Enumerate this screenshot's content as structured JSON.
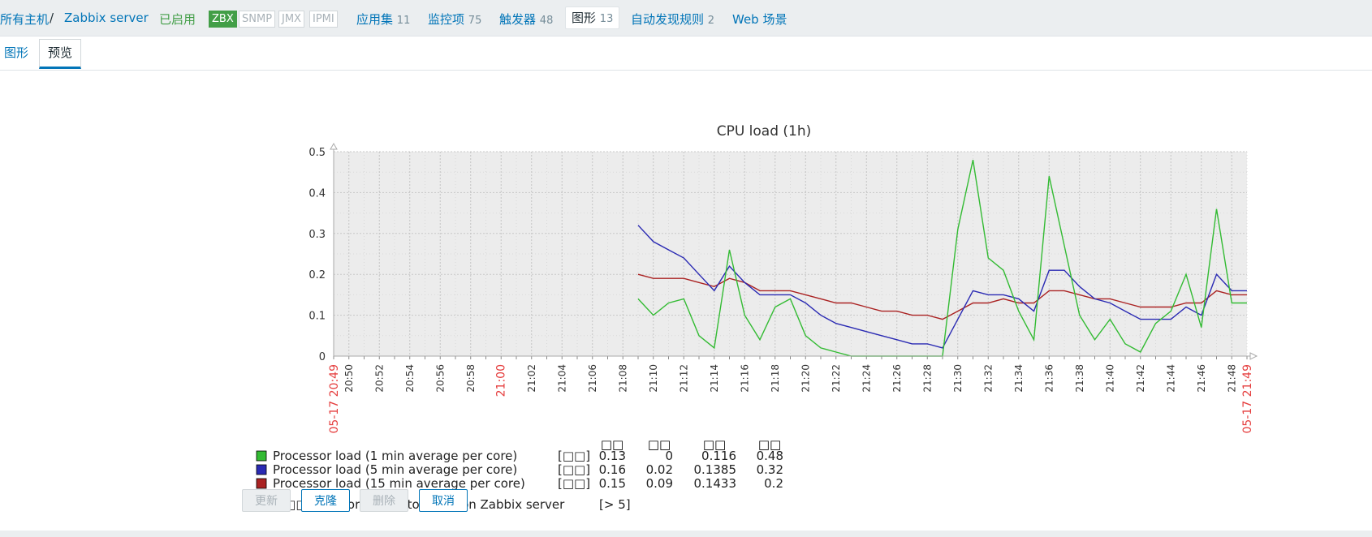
{
  "breadcrumb": {
    "all_hosts": "所有主机",
    "separator": "/",
    "host": "Zabbix server"
  },
  "status": "已启用",
  "badges": [
    "ZBX",
    "SNMP",
    "JMX",
    "IPMI"
  ],
  "nav": [
    {
      "label": "应用集",
      "count": "11"
    },
    {
      "label": "监控项",
      "count": "75"
    },
    {
      "label": "触发器",
      "count": "48"
    },
    {
      "label": "图形",
      "count": "13"
    },
    {
      "label": "自动发现规则",
      "count": "2"
    },
    {
      "label": "Web 场景",
      "count": ""
    }
  ],
  "subtabs": {
    "graph": "图形",
    "preview": "预览"
  },
  "colors": {
    "series1": "#33bb33",
    "series2": "#2a2ab3",
    "series3": "#aa2222",
    "trigger": "#ffd88a"
  },
  "chart_data": {
    "type": "line",
    "title": "CPU load (1h)",
    "ylim": [
      0,
      0.5
    ],
    "yticks": [
      "0",
      "0.1",
      "0.2",
      "0.3",
      "0.4",
      "0.5"
    ],
    "x_start": "05-17 20:49",
    "x_end": "05-17 21:49",
    "x_ticks": [
      "20:50",
      "20:52",
      "20:54",
      "20:56",
      "20:58",
      "21:00",
      "21:02",
      "21:04",
      "21:06",
      "21:08",
      "21:10",
      "21:12",
      "21:14",
      "21:16",
      "21:18",
      "21:20",
      "21:22",
      "21:24",
      "21:26",
      "21:28",
      "21:30",
      "21:32",
      "21:34",
      "21:36",
      "21:38",
      "21:40",
      "21:42",
      "21:44",
      "21:46",
      "21:48"
    ],
    "grid": true,
    "series": [
      {
        "name": "Processor load (1 min average per core)",
        "color": "#33bb33",
        "points": [
          [
            "21:09",
            0.14
          ],
          [
            "21:10",
            0.1
          ],
          [
            "21:11",
            0.13
          ],
          [
            "21:12",
            0.14
          ],
          [
            "21:13",
            0.05
          ],
          [
            "21:14",
            0.02
          ],
          [
            "21:15",
            0.26
          ],
          [
            "21:16",
            0.1
          ],
          [
            "21:17",
            0.04
          ],
          [
            "21:18",
            0.12
          ],
          [
            "21:19",
            0.14
          ],
          [
            "21:20",
            0.05
          ],
          [
            "21:21",
            0.02
          ],
          [
            "21:22",
            0.01
          ],
          [
            "21:23",
            0.0
          ],
          [
            "21:29",
            0.0
          ],
          [
            "21:30",
            0.31
          ],
          [
            "21:31",
            0.48
          ],
          [
            "21:32",
            0.24
          ],
          [
            "21:33",
            0.21
          ],
          [
            "21:34",
            0.11
          ],
          [
            "21:35",
            0.04
          ],
          [
            "21:36",
            0.44
          ],
          [
            "21:37",
            0.27
          ],
          [
            "21:38",
            0.1
          ],
          [
            "21:39",
            0.04
          ],
          [
            "21:40",
            0.09
          ],
          [
            "21:41",
            0.03
          ],
          [
            "21:42",
            0.01
          ],
          [
            "21:43",
            0.08
          ],
          [
            "21:44",
            0.11
          ],
          [
            "21:45",
            0.2
          ],
          [
            "21:46",
            0.07
          ],
          [
            "21:47",
            0.36
          ],
          [
            "21:48",
            0.13
          ],
          [
            "21:49",
            0.13
          ]
        ]
      },
      {
        "name": "Processor load (5 min average per core)",
        "color": "#2a2ab3",
        "points": [
          [
            "21:09",
            0.32
          ],
          [
            "21:10",
            0.28
          ],
          [
            "21:11",
            0.26
          ],
          [
            "21:12",
            0.24
          ],
          [
            "21:13",
            0.2
          ],
          [
            "21:14",
            0.16
          ],
          [
            "21:15",
            0.22
          ],
          [
            "21:16",
            0.18
          ],
          [
            "21:17",
            0.15
          ],
          [
            "21:18",
            0.15
          ],
          [
            "21:19",
            0.15
          ],
          [
            "21:20",
            0.13
          ],
          [
            "21:21",
            0.1
          ],
          [
            "21:22",
            0.08
          ],
          [
            "21:23",
            0.07
          ],
          [
            "21:24",
            0.06
          ],
          [
            "21:25",
            0.05
          ],
          [
            "21:26",
            0.04
          ],
          [
            "21:27",
            0.03
          ],
          [
            "21:28",
            0.03
          ],
          [
            "21:29",
            0.02
          ],
          [
            "21:30",
            0.09
          ],
          [
            "21:31",
            0.16
          ],
          [
            "21:32",
            0.15
          ],
          [
            "21:33",
            0.15
          ],
          [
            "21:34",
            0.14
          ],
          [
            "21:35",
            0.11
          ],
          [
            "21:36",
            0.21
          ],
          [
            "21:37",
            0.21
          ],
          [
            "21:38",
            0.17
          ],
          [
            "21:39",
            0.14
          ],
          [
            "21:40",
            0.13
          ],
          [
            "21:41",
            0.11
          ],
          [
            "21:42",
            0.09
          ],
          [
            "21:43",
            0.09
          ],
          [
            "21:44",
            0.09
          ],
          [
            "21:45",
            0.12
          ],
          [
            "21:46",
            0.1
          ],
          [
            "21:47",
            0.2
          ],
          [
            "21:48",
            0.16
          ],
          [
            "21:49",
            0.16
          ]
        ]
      },
      {
        "name": "Processor load (15 min average per core)",
        "color": "#aa2222",
        "points": [
          [
            "21:09",
            0.2
          ],
          [
            "21:10",
            0.19
          ],
          [
            "21:11",
            0.19
          ],
          [
            "21:12",
            0.19
          ],
          [
            "21:13",
            0.18
          ],
          [
            "21:14",
            0.17
          ],
          [
            "21:15",
            0.19
          ],
          [
            "21:16",
            0.18
          ],
          [
            "21:17",
            0.16
          ],
          [
            "21:18",
            0.16
          ],
          [
            "21:19",
            0.16
          ],
          [
            "21:20",
            0.15
          ],
          [
            "21:21",
            0.14
          ],
          [
            "21:22",
            0.13
          ],
          [
            "21:23",
            0.13
          ],
          [
            "21:24",
            0.12
          ],
          [
            "21:25",
            0.11
          ],
          [
            "21:26",
            0.11
          ],
          [
            "21:27",
            0.1
          ],
          [
            "21:28",
            0.1
          ],
          [
            "21:29",
            0.09
          ],
          [
            "21:30",
            0.11
          ],
          [
            "21:31",
            0.13
          ],
          [
            "21:32",
            0.13
          ],
          [
            "21:33",
            0.14
          ],
          [
            "21:34",
            0.13
          ],
          [
            "21:35",
            0.13
          ],
          [
            "21:36",
            0.16
          ],
          [
            "21:37",
            0.16
          ],
          [
            "21:38",
            0.15
          ],
          [
            "21:39",
            0.14
          ],
          [
            "21:40",
            0.14
          ],
          [
            "21:41",
            0.13
          ],
          [
            "21:42",
            0.12
          ],
          [
            "21:43",
            0.12
          ],
          [
            "21:44",
            0.12
          ],
          [
            "21:45",
            0.13
          ],
          [
            "21:46",
            0.13
          ],
          [
            "21:47",
            0.16
          ],
          [
            "21:48",
            0.15
          ],
          [
            "21:49",
            0.15
          ]
        ]
      }
    ],
    "legend": {
      "headers": [
        "□□",
        "□□",
        "□□",
        "□□"
      ],
      "rows": [
        {
          "name": "Processor load (1 min average per core)",
          "func": "[□□]",
          "last": "0.13",
          "min": "0",
          "avg": "0.116",
          "max": "0.48"
        },
        {
          "name": "Processor load (5 min average per core)",
          "func": "[□□]",
          "last": "0.16",
          "min": "0.02",
          "avg": "0.1385",
          "max": "0.32"
        },
        {
          "name": "Processor load (15 min average per core)",
          "func": "[□□]",
          "last": "0.15",
          "min": "0.09",
          "avg": "0.1433",
          "max": "0.2"
        }
      ],
      "trigger": {
        "prefix": "□□□:",
        "text": "Processor load is too high on Zabbix server",
        "threshold": "[> 5]"
      }
    }
  },
  "buttons": {
    "update": "更新",
    "clone": "克隆",
    "delete": "删除",
    "cancel": "取消"
  }
}
